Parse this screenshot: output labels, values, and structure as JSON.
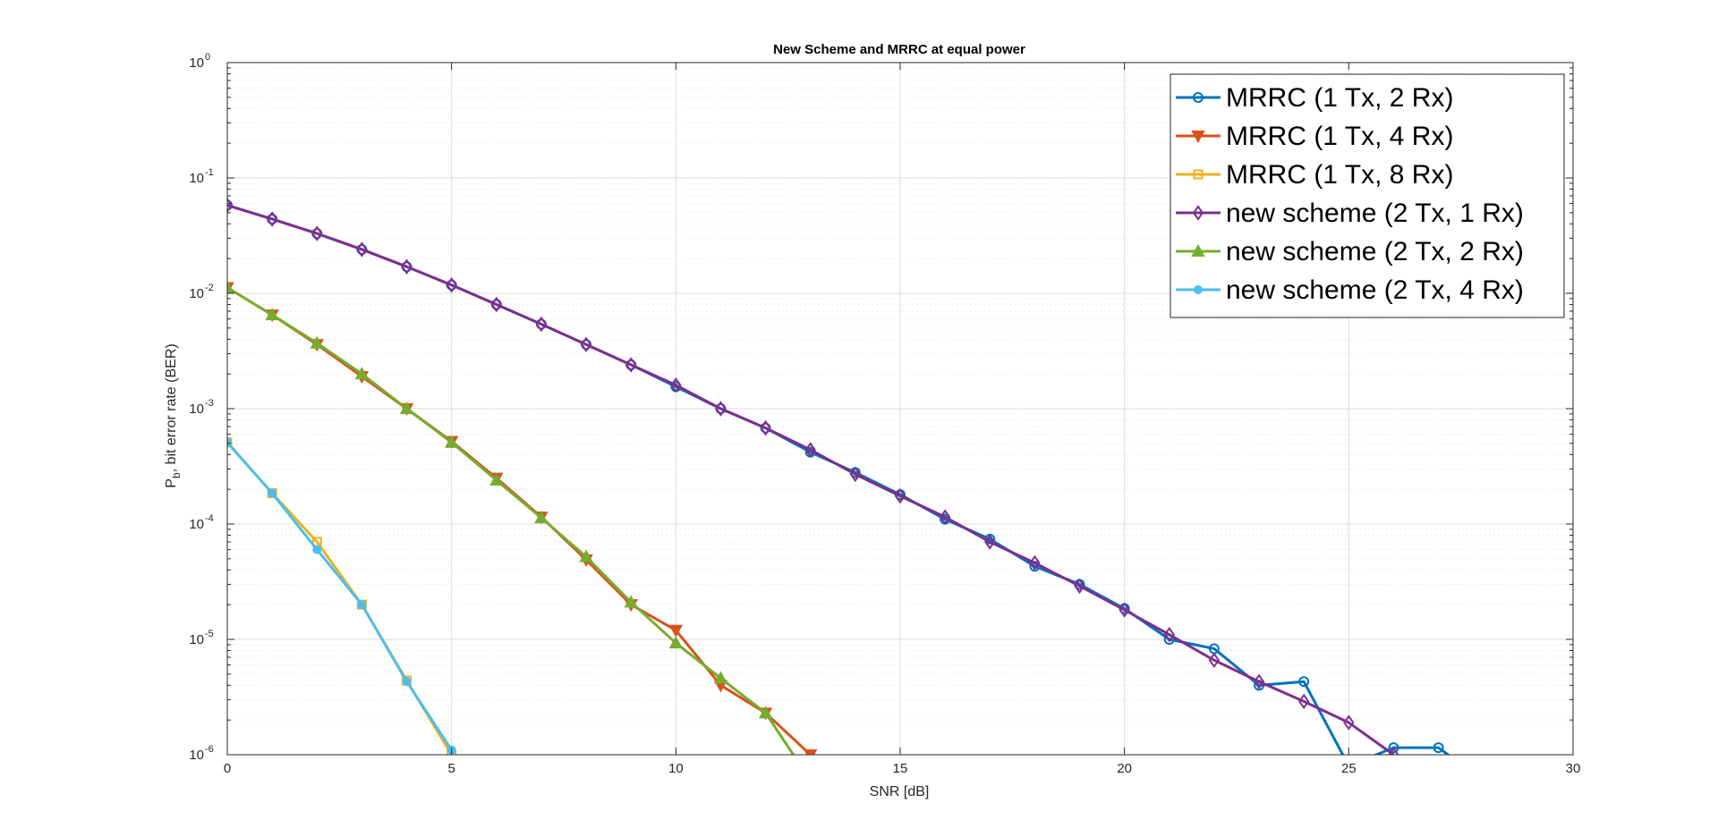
{
  "chart_data": {
    "type": "line",
    "title": "New Scheme and MRRC at equal power",
    "xlabel": "SNR [dB]",
    "ylabel_main": "P",
    "ylabel_sub": "b",
    "ylabel_rest": ", bit error rate (BER)",
    "xlim": [
      0,
      30
    ],
    "ylim": [
      1e-06,
      1
    ],
    "yscale": "log",
    "grid": true,
    "legend_position": "top-right",
    "x_ticks": [
      "0",
      "5",
      "10",
      "15",
      "20",
      "25",
      "30"
    ],
    "y_ticks": [
      {
        "base": "10",
        "exp": "-6"
      },
      {
        "base": "10",
        "exp": "-5"
      },
      {
        "base": "10",
        "exp": "-4"
      },
      {
        "base": "10",
        "exp": "-3"
      },
      {
        "base": "10",
        "exp": "-2"
      },
      {
        "base": "10",
        "exp": "-1"
      },
      {
        "base": "10",
        "exp": "0"
      }
    ],
    "series": [
      {
        "name": "MRRC (1 Tx, 2 Rx)",
        "color": "#0072BD",
        "marker": "circle",
        "points": [
          [
            0,
            0.058
          ],
          [
            1,
            0.044
          ],
          [
            2,
            0.033
          ],
          [
            3,
            0.024
          ],
          [
            4,
            0.017
          ],
          [
            5,
            0.0118
          ],
          [
            6,
            0.008
          ],
          [
            7,
            0.0054
          ],
          [
            8,
            0.0036
          ],
          [
            9,
            0.0024
          ],
          [
            10,
            0.00155
          ],
          [
            11,
            0.001
          ],
          [
            12,
            0.00068
          ],
          [
            13,
            0.00042
          ],
          [
            14,
            0.00028
          ],
          [
            15,
            0.00018
          ],
          [
            16,
            0.00011
          ],
          [
            17,
            7.4e-05
          ],
          [
            18,
            4.3e-05
          ],
          [
            19,
            3e-05
          ],
          [
            20,
            1.85e-05
          ],
          [
            21,
            1e-05
          ],
          [
            22,
            8.3e-06
          ],
          [
            23,
            4e-06
          ],
          [
            24,
            4.3e-06
          ],
          [
            25,
            8e-07
          ],
          [
            26,
            1.15e-06
          ],
          [
            27,
            1.15e-06
          ],
          [
            28,
            6e-07
          ]
        ]
      },
      {
        "name": "MRRC (1 Tx, 4 Rx)",
        "color": "#D95319",
        "marker": "triangle-down",
        "points": [
          [
            0,
            0.0112
          ],
          [
            1,
            0.0065
          ],
          [
            2,
            0.0036
          ],
          [
            3,
            0.0019
          ],
          [
            4,
            0.001
          ],
          [
            5,
            0.00052
          ],
          [
            6,
            0.00025
          ],
          [
            7,
            0.000115
          ],
          [
            8,
            4.9e-05
          ],
          [
            9,
            2e-05
          ],
          [
            10,
            1.2e-05
          ],
          [
            11,
            4e-06
          ],
          [
            12,
            2.3e-06
          ],
          [
            13,
            1e-06
          ]
        ]
      },
      {
        "name": "MRRC (1 Tx, 8 Rx)",
        "color": "#EDB120",
        "marker": "square",
        "points": [
          [
            0,
            0.00051
          ],
          [
            1,
            0.000185
          ],
          [
            2,
            7e-05
          ],
          [
            3,
            2e-05
          ],
          [
            4,
            4.4e-06
          ],
          [
            5,
            1e-06
          ]
        ]
      },
      {
        "name": "new scheme (2 Tx, 1 Rx)",
        "color": "#7E2F8E",
        "marker": "diamond",
        "points": [
          [
            0,
            0.058
          ],
          [
            1,
            0.044
          ],
          [
            2,
            0.033
          ],
          [
            3,
            0.024
          ],
          [
            4,
            0.017
          ],
          [
            5,
            0.0118
          ],
          [
            6,
            0.008
          ],
          [
            7,
            0.0054
          ],
          [
            8,
            0.0036
          ],
          [
            9,
            0.0024
          ],
          [
            10,
            0.0016
          ],
          [
            11,
            0.001
          ],
          [
            12,
            0.00068
          ],
          [
            13,
            0.00044
          ],
          [
            14,
            0.00027
          ],
          [
            15,
            0.000175
          ],
          [
            16,
            0.000115
          ],
          [
            17,
            7e-05
          ],
          [
            18,
            4.6e-05
          ],
          [
            19,
            2.9e-05
          ],
          [
            20,
            1.8e-05
          ],
          [
            21,
            1.1e-05
          ],
          [
            22,
            6.6e-06
          ],
          [
            23,
            4.3e-06
          ],
          [
            24,
            2.9e-06
          ],
          [
            25,
            1.9e-06
          ],
          [
            26,
            1e-06
          ]
        ]
      },
      {
        "name": "new scheme (2 Tx, 2 Rx)",
        "color": "#77AC30",
        "marker": "triangle-up",
        "points": [
          [
            0,
            0.0112
          ],
          [
            1,
            0.0065
          ],
          [
            2,
            0.0037
          ],
          [
            3,
            0.002
          ],
          [
            4,
            0.001
          ],
          [
            5,
            0.00051
          ],
          [
            6,
            0.00024
          ],
          [
            7,
            0.000113
          ],
          [
            8,
            5.2e-05
          ],
          [
            9,
            2.1e-05
          ],
          [
            10,
            9.3e-06
          ],
          [
            11,
            4.6e-06
          ],
          [
            12,
            2.3e-06
          ],
          [
            13,
            6e-07
          ]
        ]
      },
      {
        "name": "new scheme (2 Tx, 4 Rx)",
        "color": "#4DBEEE",
        "marker": "dot",
        "points": [
          [
            0,
            0.00051
          ],
          [
            1,
            0.000185
          ],
          [
            2,
            6e-05
          ],
          [
            3,
            2e-05
          ],
          [
            4,
            4.3e-06
          ],
          [
            5,
            1.1e-06
          ]
        ]
      }
    ]
  }
}
